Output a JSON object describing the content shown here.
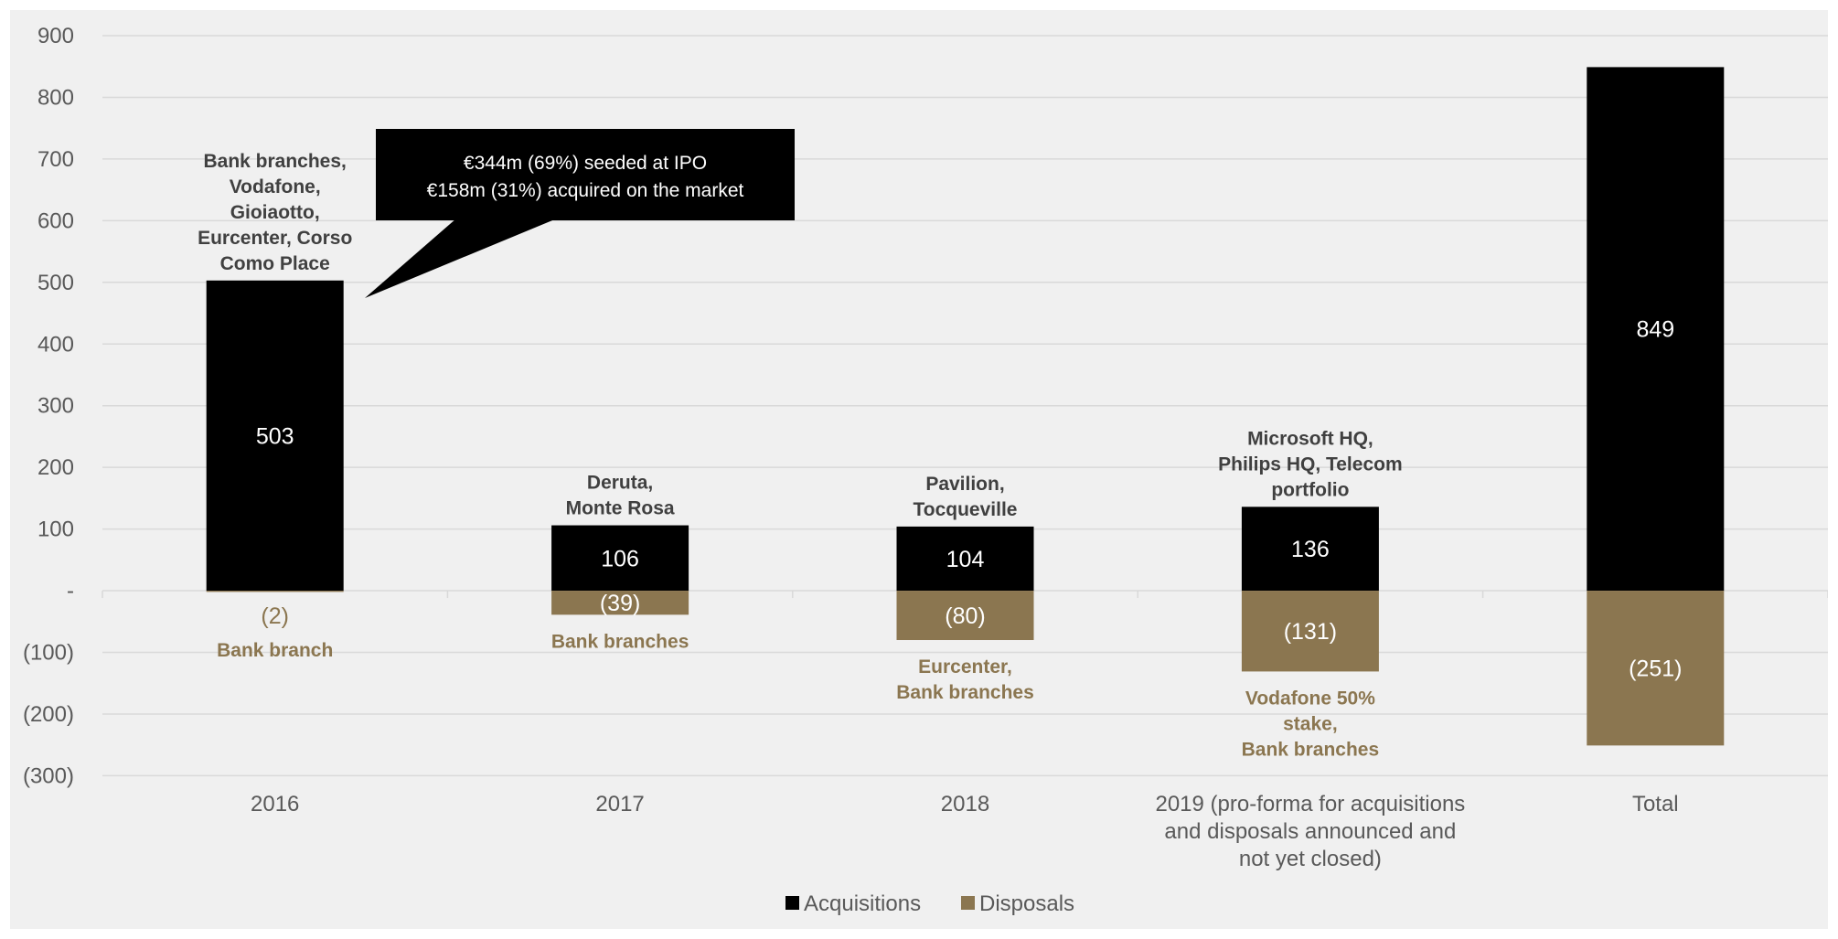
{
  "chart_data": {
    "type": "bar",
    "stacked": true,
    "categories": [
      "2016",
      "2017",
      "2018",
      "2019 (pro-forma for acquisitions and disposals announced and not yet closed)",
      "Total"
    ],
    "category_lines": [
      [
        "2016"
      ],
      [
        "2017"
      ],
      [
        "2018"
      ],
      [
        "2019 (pro-forma for acquisitions",
        "and disposals announced and",
        "not yet closed)"
      ],
      [
        "Total"
      ]
    ],
    "series": [
      {
        "name": "Acquisitions",
        "color": "#000000",
        "label_color": "#ffffff",
        "values": [
          503,
          106,
          104,
          136,
          849
        ],
        "value_labels": [
          "503",
          "106",
          "104",
          "136",
          "849"
        ]
      },
      {
        "name": "Disposals",
        "color": "#8b7650",
        "label_color": "#ffffff",
        "values": [
          -2,
          -39,
          -80,
          -131,
          -251
        ],
        "value_labels": [
          "(2)",
          "(39)",
          "(80)",
          "(131)",
          "(251)"
        ]
      }
    ],
    "ylim": [
      -300,
      900
    ],
    "yticks": [
      -300,
      -200,
      -100,
      0,
      100,
      200,
      300,
      400,
      500,
      600,
      700,
      800,
      900
    ],
    "ytick_labels": [
      "(300)",
      "(200)",
      "(100)",
      "-",
      "100",
      "200",
      "300",
      "400",
      "500",
      "600",
      "700",
      "800",
      "900"
    ],
    "grid": true,
    "legend_placement": "bottom-center",
    "annotations": {
      "acquisitions": [
        [
          "Bank branches,",
          "Vodafone,",
          "Gioiaotto,",
          "Eurcenter, Corso",
          "Como Place"
        ],
        [
          "Deruta,",
          "Monte Rosa"
        ],
        [
          "Pavilion,",
          "Tocqueville"
        ],
        [
          "Microsoft HQ,",
          "Philips HQ, Telecom",
          "portfolio"
        ],
        []
      ],
      "disposals": [
        [
          "Bank branch"
        ],
        [
          "Bank branches"
        ],
        [
          "Eurcenter,",
          "Bank branches"
        ],
        [
          "Vodafone 50%",
          "stake,",
          "Bank branches"
        ],
        []
      ]
    },
    "callout": {
      "lines": [
        "€344m (69%) seeded at IPO",
        "€158m (31%) acquired on the market"
      ]
    },
    "colors": {
      "annotation_dark": "#404040",
      "annotation_gold": "#8b7650",
      "small_disposal_label": "#8b7650",
      "grid": "#d9d9d9",
      "background": "#f0f0f0"
    }
  }
}
